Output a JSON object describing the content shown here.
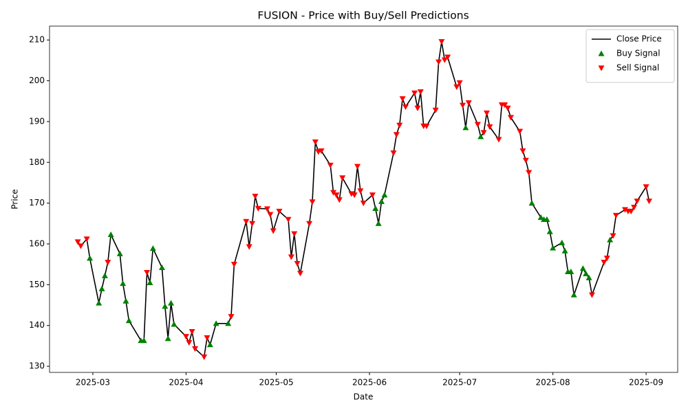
{
  "chart_data": {
    "type": "line",
    "title": "FUSION - Price with Buy/Sell Predictions",
    "xlabel": "Date",
    "ylabel": "Price",
    "x": [
      54,
      55,
      57,
      58,
      61,
      62,
      63,
      64,
      65,
      68,
      69,
      70,
      71,
      75,
      76,
      77,
      78,
      79,
      82,
      83,
      84,
      85,
      86,
      90,
      91,
      92,
      93,
      96,
      97,
      98,
      100,
      104,
      105,
      106,
      110,
      111,
      112,
      113,
      114,
      117,
      118,
      119,
      121,
      124,
      125,
      126,
      127,
      128,
      131,
      132,
      133,
      134,
      135,
      138,
      139,
      140,
      141,
      142,
      145,
      146,
      147,
      148,
      149,
      152,
      153,
      154,
      155,
      156,
      159,
      160,
      161,
      162,
      163,
      166,
      167,
      168,
      169,
      170,
      173,
      174,
      175,
      176,
      177,
      180,
      181,
      182,
      183,
      184,
      187,
      188,
      189,
      190,
      191,
      194,
      195,
      196,
      197,
      198,
      201,
      202,
      203,
      204,
      205,
      208,
      209,
      210,
      211,
      212,
      215,
      216,
      217,
      218,
      219,
      222,
      223,
      224,
      225,
      229,
      230,
      231,
      232,
      233,
      236,
      237,
      238,
      239,
      240,
      243,
      244
    ],
    "series": [
      {
        "name": "Close Price",
        "color": "#000000",
        "style": "line",
        "values": [
          160.5,
          159.5,
          161.2,
          156.5,
          145.5,
          149,
          152.2,
          155.5,
          162.3,
          157.6,
          150.3,
          146,
          141.2,
          136.3,
          136.3,
          153,
          150.5,
          158.9,
          154.2,
          144.7,
          136.8,
          145.5,
          140.3,
          137.3,
          135.8,
          138.5,
          134.3,
          132.3,
          137,
          135.3,
          140.5,
          140.5,
          142.2,
          155,
          165.5,
          159.3,
          165,
          171.7,
          168.7,
          168.6,
          167.2,
          163.2,
          168,
          166,
          156.8,
          162.5,
          155.2,
          152.8,
          165,
          170.3,
          185,
          182.6,
          182.8,
          179.3,
          172.6,
          172,
          170.8,
          176.2,
          172.3,
          172,
          179,
          173,
          170,
          172,
          168.7,
          165,
          170.4,
          172,
          182.3,
          186.8,
          189.1,
          195.6,
          193.6,
          197,
          193.3,
          197.3,
          188.9,
          188.9,
          192.8,
          204.6,
          209.6,
          205.1,
          205.8,
          198.5,
          199.5,
          194,
          188.5,
          194.6,
          189.3,
          186.3,
          187.3,
          192.1,
          188.7,
          185.6,
          194.1,
          194.1,
          193.3,
          191,
          187.6,
          182.8,
          180.5,
          177.5,
          170,
          166.5,
          166,
          166,
          163,
          159,
          160.3,
          158.3,
          153.2,
          153.2,
          147.5,
          154,
          152.7,
          151.7,
          147.5,
          155.5,
          156.5,
          161,
          162,
          167,
          168.4,
          168,
          168,
          169,
          170.5,
          174,
          170.5
        ]
      },
      {
        "name": "Buy Signal",
        "color": "#008000",
        "style": "triangle-up",
        "x": [
          58,
          61,
          62,
          63,
          65,
          68,
          69,
          70,
          71,
          75,
          76,
          78,
          79,
          82,
          83,
          84,
          85,
          86,
          98,
          100,
          104,
          153,
          154,
          155,
          156,
          183,
          188,
          205,
          208,
          209,
          210,
          211,
          212,
          215,
          216,
          217,
          218,
          219,
          222,
          223,
          224,
          231
        ],
        "values": [
          156.5,
          145.5,
          149,
          152.2,
          162.3,
          157.6,
          150.3,
          146,
          141.2,
          136.3,
          136.3,
          150.5,
          158.9,
          154.2,
          144.7,
          136.8,
          145.5,
          140.3,
          135.3,
          140.5,
          140.5,
          168.7,
          165,
          170.4,
          172,
          188.5,
          186.3,
          170,
          166.5,
          166,
          166,
          163,
          159,
          160.3,
          158.3,
          153.2,
          153.2,
          147.5,
          154,
          152.7,
          151.7,
          161
        ]
      },
      {
        "name": "Sell Signal",
        "color": "#ff0000",
        "style": "triangle-down",
        "x": [
          54,
          55,
          57,
          64,
          77,
          90,
          91,
          92,
          93,
          96,
          97,
          105,
          106,
          110,
          111,
          112,
          113,
          114,
          117,
          118,
          119,
          121,
          124,
          125,
          126,
          127,
          128,
          131,
          132,
          133,
          134,
          135,
          138,
          139,
          140,
          141,
          142,
          145,
          146,
          147,
          148,
          149,
          152,
          159,
          160,
          161,
          162,
          163,
          166,
          167,
          168,
          169,
          170,
          173,
          174,
          175,
          176,
          177,
          180,
          181,
          182,
          184,
          187,
          189,
          190,
          191,
          194,
          195,
          196,
          197,
          198,
          201,
          202,
          203,
          204,
          225,
          229,
          230,
          232,
          233,
          236,
          237,
          238,
          239,
          240,
          243,
          244
        ],
        "values": [
          160.5,
          159.5,
          161.2,
          155.5,
          153,
          137.3,
          135.8,
          138.5,
          134.3,
          132.3,
          137,
          142.2,
          155,
          165.5,
          159.3,
          165,
          171.7,
          168.7,
          168.6,
          167.2,
          163.2,
          168,
          166,
          156.8,
          162.5,
          155.2,
          152.8,
          165,
          170.3,
          185,
          182.6,
          182.8,
          179.3,
          172.6,
          172,
          170.8,
          176.2,
          172.3,
          172,
          179,
          173,
          170,
          172,
          182.3,
          186.8,
          189.1,
          195.6,
          193.6,
          197,
          193.3,
          197.3,
          188.9,
          188.9,
          192.8,
          204.6,
          209.6,
          205.1,
          205.8,
          198.5,
          199.5,
          194,
          194.6,
          189.3,
          187.3,
          192.1,
          188.7,
          185.6,
          194.1,
          194.1,
          193.3,
          191,
          187.6,
          182.8,
          180.5,
          177.5,
          147.5,
          155.5,
          156.5,
          162,
          167,
          168.4,
          168,
          168,
          169,
          170.5,
          174,
          170.5
        ]
      }
    ],
    "xlim": [
      44.6,
      253.5
    ],
    "xticks": [
      {
        "value": 59,
        "label": "2025-03"
      },
      {
        "value": 90,
        "label": "2025-04"
      },
      {
        "value": 120,
        "label": "2025-05"
      },
      {
        "value": 151,
        "label": "2025-06"
      },
      {
        "value": 181,
        "label": "2025-07"
      },
      {
        "value": 212,
        "label": "2025-08"
      },
      {
        "value": 243,
        "label": "2025-09"
      }
    ],
    "ylim": [
      128.5,
      213.4
    ],
    "yticks": [
      130,
      140,
      150,
      160,
      170,
      180,
      190,
      200,
      210
    ],
    "grid": false,
    "legend": "upper right"
  }
}
